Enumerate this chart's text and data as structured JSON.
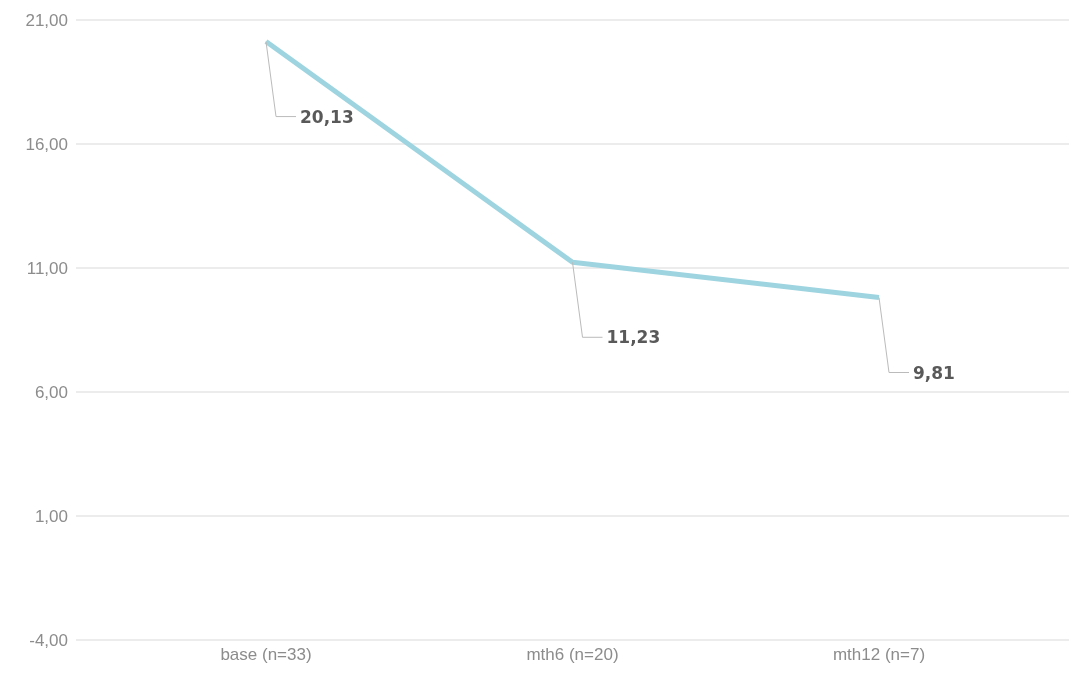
{
  "chart_data": {
    "type": "line",
    "categories": [
      "base (n=33)",
      "mth6 (n=20)",
      "mth12 (n=7)"
    ],
    "series": [
      {
        "color": "#9dd4e0",
        "values": [
          20.13,
          11.23,
          9.81
        ],
        "value_labels": [
          "20,13",
          "11,23",
          "9,81"
        ]
      }
    ],
    "ylim": [
      -4,
      21
    ],
    "yticks": [
      {
        "value": -4,
        "label": "-4,00"
      },
      {
        "value": 1,
        "label": "1,00"
      },
      {
        "value": 6,
        "label": "6,00"
      },
      {
        "value": 11,
        "label": "11,00"
      },
      {
        "value": 16,
        "label": "16,00"
      },
      {
        "value": 21,
        "label": "21,00"
      }
    ],
    "grid": "y",
    "marker": "none",
    "line_style": "solid",
    "legend": false
  }
}
